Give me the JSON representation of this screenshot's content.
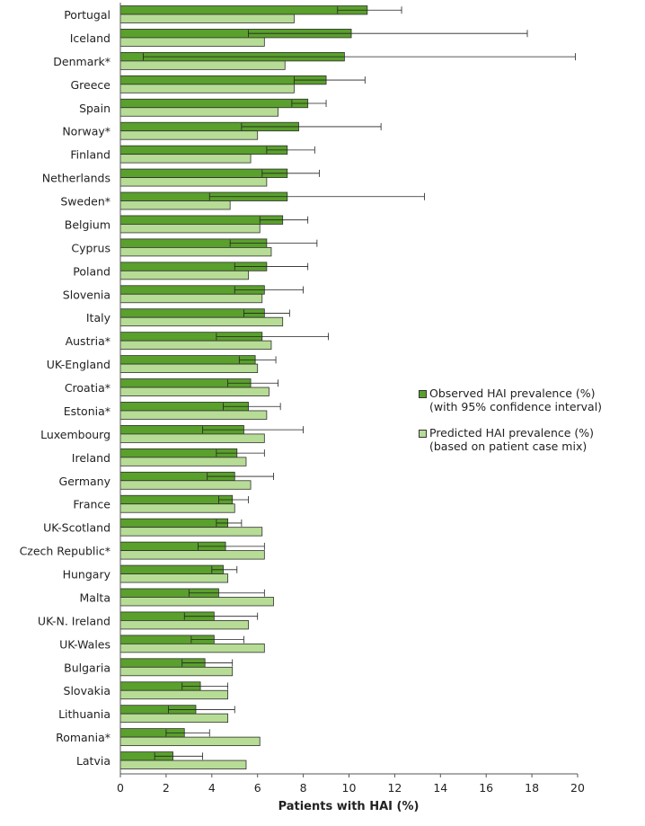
{
  "chart_data": {
    "type": "bar",
    "orientation": "horizontal",
    "xlabel": "Patients with HAI (%)",
    "xlim": [
      0,
      20
    ],
    "xticks": [
      0,
      2,
      4,
      6,
      8,
      10,
      12,
      14,
      16,
      18,
      20
    ],
    "grid": false,
    "legend_position": "right",
    "categories": [
      "Portugal",
      "Iceland",
      "Denmark*",
      "Greece",
      "Spain",
      "Norway*",
      "Finland",
      "Netherlands",
      "Sweden*",
      "Belgium",
      "Cyprus",
      "Poland",
      "Slovenia",
      "Italy",
      "Austria*",
      "UK-England",
      "Croatia*",
      "Estonia*",
      "Luxembourg",
      "Ireland",
      "Germany",
      "France",
      "UK-Scotland",
      "Czech Republic*",
      "Hungary",
      "Malta",
      "UK-N. Ireland",
      "UK-Wales",
      "Bulgaria",
      "Slovakia",
      "Lithuania",
      "Romania*",
      "Latvia"
    ],
    "series": [
      {
        "name": "Observed HAI prevalence (%)\n(with 95% confidence interval)",
        "color": "#5aa02c",
        "values": [
          10.8,
          10.1,
          9.8,
          9.0,
          8.2,
          7.8,
          7.3,
          7.3,
          7.3,
          7.1,
          6.4,
          6.4,
          6.3,
          6.3,
          6.2,
          5.9,
          5.7,
          5.6,
          5.4,
          5.1,
          5.0,
          4.9,
          4.7,
          4.6,
          4.5,
          4.3,
          4.1,
          4.1,
          3.7,
          3.5,
          3.3,
          2.8,
          2.3
        ],
        "ci_low": [
          9.5,
          5.6,
          1.0,
          7.6,
          7.5,
          5.3,
          6.4,
          6.2,
          3.9,
          6.1,
          4.8,
          5.0,
          5.0,
          5.4,
          4.2,
          5.2,
          4.7,
          4.5,
          3.6,
          4.2,
          3.8,
          4.3,
          4.2,
          3.4,
          4.0,
          3.0,
          2.8,
          3.1,
          2.7,
          2.7,
          2.1,
          2.0,
          1.5
        ],
        "ci_high": [
          12.3,
          17.8,
          19.9,
          10.7,
          9.0,
          11.4,
          8.5,
          8.7,
          13.3,
          8.2,
          8.6,
          8.2,
          8.0,
          7.4,
          9.1,
          6.8,
          6.9,
          7.0,
          8.0,
          6.3,
          6.7,
          5.6,
          5.3,
          6.3,
          5.1,
          6.3,
          6.0,
          5.4,
          4.9,
          4.7,
          5.0,
          3.9,
          3.6
        ]
      },
      {
        "name": "Predicted HAI prevalence (%)\n(based on patient case mix)",
        "color": "#b7dc96",
        "values": [
          7.6,
          6.3,
          7.2,
          7.6,
          6.9,
          6.0,
          5.7,
          6.4,
          4.8,
          6.1,
          6.6,
          5.6,
          6.2,
          7.1,
          6.6,
          6.0,
          6.5,
          6.4,
          6.3,
          5.5,
          5.7,
          5.0,
          6.2,
          6.3,
          4.7,
          6.7,
          5.6,
          6.3,
          4.9,
          4.7,
          4.7,
          6.1,
          5.5
        ]
      }
    ]
  }
}
